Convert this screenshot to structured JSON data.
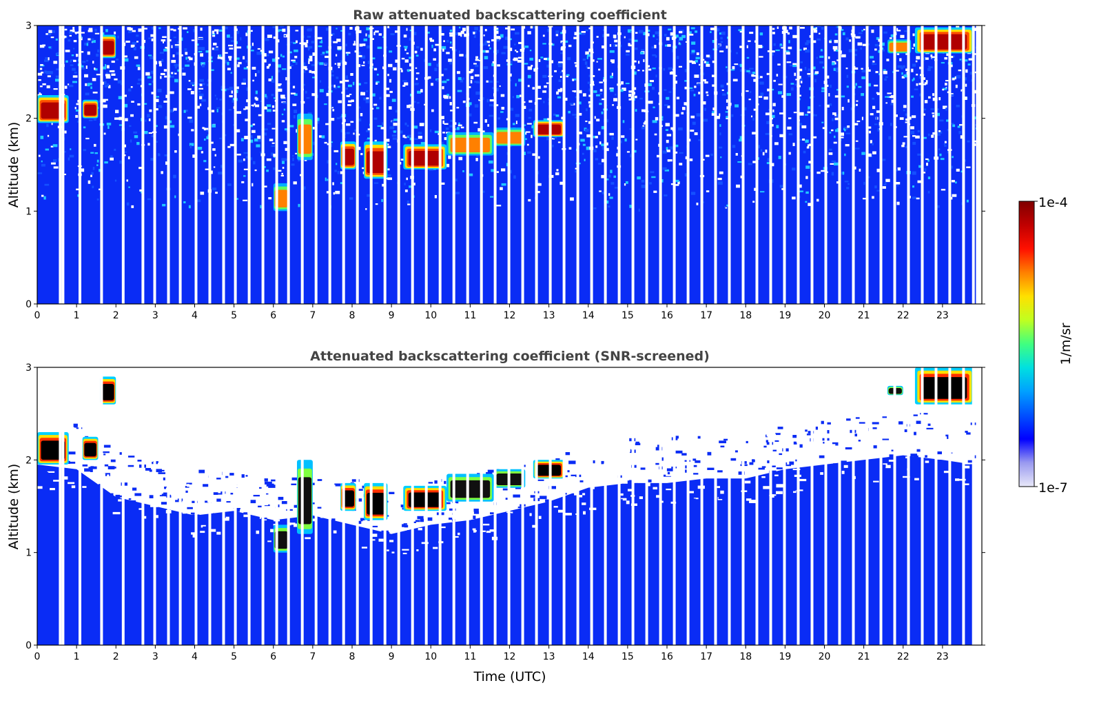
{
  "chart_data": [
    {
      "type": "heatmap",
      "title": "Raw attenuated backscattering coefficient",
      "xlabel": "",
      "ylabel": "Altitude (km)",
      "xlim": [
        0,
        24
      ],
      "ylim": [
        0,
        3
      ],
      "x_ticks": [
        "0",
        "1",
        "2",
        "3",
        "4",
        "5",
        "6",
        "7",
        "8",
        "9",
        "10",
        "11",
        "12",
        "13",
        "14",
        "15",
        "16",
        "17",
        "18",
        "19",
        "20",
        "21",
        "22",
        "23"
      ],
      "y_ticks": [
        "0",
        "1",
        "2",
        "3"
      ],
      "colormap": "jet",
      "color_scale": "log",
      "clim": [
        "1e-7",
        "1e-4"
      ],
      "background_color": "#0a2cf5",
      "noise_fraction_above_1km": 0.55,
      "cloud_layers": [
        {
          "t_start": 0.0,
          "t_end": 0.8,
          "alt_bottom": 1.95,
          "alt_top": 2.25,
          "intensity": "high"
        },
        {
          "t_start": 1.15,
          "t_end": 1.55,
          "alt_bottom": 2.0,
          "alt_top": 2.2,
          "intensity": "high"
        },
        {
          "t_start": 1.6,
          "t_end": 2.0,
          "alt_bottom": 2.65,
          "alt_top": 2.9,
          "intensity": "high"
        },
        {
          "t_start": 6.0,
          "t_end": 6.4,
          "alt_bottom": 1.0,
          "alt_top": 1.3,
          "intensity": "medium"
        },
        {
          "t_start": 6.6,
          "t_end": 7.0,
          "alt_bottom": 1.55,
          "alt_top": 2.05,
          "intensity": "medium"
        },
        {
          "t_start": 7.7,
          "t_end": 8.1,
          "alt_bottom": 1.45,
          "alt_top": 1.75,
          "intensity": "high"
        },
        {
          "t_start": 8.3,
          "t_end": 8.9,
          "alt_bottom": 1.35,
          "alt_top": 1.75,
          "intensity": "high"
        },
        {
          "t_start": 9.3,
          "t_end": 10.4,
          "alt_bottom": 1.45,
          "alt_top": 1.72,
          "intensity": "high"
        },
        {
          "t_start": 10.4,
          "t_end": 11.6,
          "alt_bottom": 1.6,
          "alt_top": 1.85,
          "intensity": "medium"
        },
        {
          "t_start": 11.6,
          "t_end": 12.4,
          "alt_bottom": 1.7,
          "alt_top": 1.9,
          "intensity": "medium"
        },
        {
          "t_start": 12.6,
          "t_end": 13.4,
          "alt_bottom": 1.8,
          "alt_top": 1.98,
          "intensity": "high"
        },
        {
          "t_start": 21.6,
          "t_end": 22.2,
          "alt_bottom": 2.7,
          "alt_top": 2.85,
          "intensity": "medium"
        },
        {
          "t_start": 22.3,
          "t_end": 23.8,
          "alt_bottom": 2.7,
          "alt_top": 2.98,
          "intensity": "high"
        }
      ],
      "gap_times": [
        0.55,
        0.62,
        1.05,
        1.6,
        2.15,
        2.65,
        2.95,
        3.3,
        3.6,
        4.0,
        4.35,
        4.7,
        5.0,
        5.35,
        5.7,
        6.05,
        6.35,
        6.7,
        7.05,
        7.4,
        7.75,
        8.1,
        8.45,
        8.8,
        9.15,
        9.5,
        9.85,
        10.2,
        10.55,
        10.9,
        11.25,
        11.6,
        11.95,
        12.3,
        12.65,
        13.0,
        13.35,
        13.7,
        14.05,
        14.4,
        14.75,
        15.1,
        15.45,
        15.8,
        16.15,
        16.5,
        16.85,
        17.2,
        17.55,
        17.9,
        18.25,
        18.6,
        18.95,
        19.3,
        19.65,
        20.0,
        20.35,
        20.7,
        21.05,
        21.4,
        21.75,
        22.1,
        22.45,
        22.8,
        23.15,
        23.5,
        23.75
      ]
    },
    {
      "type": "heatmap",
      "title": "Attenuated backscattering coefficient (SNR-screened)",
      "xlabel": "Time (UTC)",
      "ylabel": "Altitude (km)",
      "xlim": [
        0,
        24
      ],
      "ylim": [
        0,
        3
      ],
      "x_ticks": [
        "0",
        "1",
        "2",
        "3",
        "4",
        "5",
        "6",
        "7",
        "8",
        "9",
        "10",
        "11",
        "12",
        "13",
        "14",
        "15",
        "16",
        "17",
        "18",
        "19",
        "20",
        "21",
        "22",
        "23"
      ],
      "y_ticks": [
        "0",
        "1",
        "2",
        "3"
      ],
      "colormap": "jet",
      "color_scale": "log",
      "clim": [
        "1e-7",
        "1e-4"
      ],
      "background_color": "#0a2cf5",
      "signal_top_km": [
        [
          0,
          1.95
        ],
        [
          1,
          1.9
        ],
        [
          2,
          1.6
        ],
        [
          3,
          1.5
        ],
        [
          4,
          1.4
        ],
        [
          5,
          1.45
        ],
        [
          6,
          1.35
        ],
        [
          7,
          1.4
        ],
        [
          8,
          1.3
        ],
        [
          9,
          1.2
        ],
        [
          10,
          1.3
        ],
        [
          11,
          1.35
        ],
        [
          12,
          1.45
        ],
        [
          13,
          1.55
        ],
        [
          14,
          1.7
        ],
        [
          15,
          1.75
        ],
        [
          16,
          1.75
        ],
        [
          17,
          1.8
        ],
        [
          18,
          1.8
        ],
        [
          19,
          1.9
        ],
        [
          20,
          1.95
        ],
        [
          21,
          2.0
        ],
        [
          22,
          2.05
        ],
        [
          23,
          2.0
        ],
        [
          23.8,
          1.95
        ]
      ],
      "cloud_layers": [
        {
          "t_start": 0.0,
          "t_end": 0.8,
          "alt_bottom": 1.95,
          "alt_top": 2.3,
          "intensity": "high"
        },
        {
          "t_start": 1.15,
          "t_end": 1.55,
          "alt_bottom": 2.0,
          "alt_top": 2.25,
          "intensity": "high"
        },
        {
          "t_start": 1.6,
          "t_end": 2.0,
          "alt_bottom": 2.6,
          "alt_top": 2.9,
          "intensity": "high"
        },
        {
          "t_start": 6.0,
          "t_end": 6.4,
          "alt_bottom": 1.0,
          "alt_top": 1.3,
          "intensity": "medium"
        },
        {
          "t_start": 6.6,
          "t_end": 7.0,
          "alt_bottom": 1.2,
          "alt_top": 2.0,
          "intensity": "medium"
        },
        {
          "t_start": 7.7,
          "t_end": 8.1,
          "alt_bottom": 1.45,
          "alt_top": 1.75,
          "intensity": "high"
        },
        {
          "t_start": 8.3,
          "t_end": 8.9,
          "alt_bottom": 1.35,
          "alt_top": 1.75,
          "intensity": "high"
        },
        {
          "t_start": 9.3,
          "t_end": 10.4,
          "alt_bottom": 1.45,
          "alt_top": 1.72,
          "intensity": "high"
        },
        {
          "t_start": 10.4,
          "t_end": 11.6,
          "alt_bottom": 1.55,
          "alt_top": 1.85,
          "intensity": "medium"
        },
        {
          "t_start": 11.6,
          "t_end": 12.4,
          "alt_bottom": 1.7,
          "alt_top": 1.9,
          "intensity": "medium"
        },
        {
          "t_start": 12.6,
          "t_end": 13.4,
          "alt_bottom": 1.8,
          "alt_top": 2.0,
          "intensity": "high"
        },
        {
          "t_start": 21.6,
          "t_end": 22.0,
          "alt_bottom": 2.7,
          "alt_top": 2.8,
          "intensity": "medium"
        },
        {
          "t_start": 22.3,
          "t_end": 23.8,
          "alt_bottom": 2.6,
          "alt_top": 3.0,
          "intensity": "high"
        }
      ],
      "gap_times": [
        0.55,
        0.62,
        1.05,
        1.6,
        2.15,
        2.65,
        2.95,
        3.3,
        3.6,
        4.0,
        4.35,
        4.7,
        5.0,
        5.35,
        5.7,
        6.05,
        6.35,
        6.7,
        7.05,
        7.4,
        7.75,
        8.1,
        8.45,
        8.8,
        9.15,
        9.5,
        9.85,
        10.2,
        10.55,
        10.9,
        11.25,
        11.6,
        11.95,
        12.3,
        12.65,
        13.0,
        13.35,
        13.7,
        14.05,
        14.4,
        14.75,
        15.1,
        15.45,
        15.8,
        16.15,
        16.5,
        16.85,
        17.2,
        17.55,
        17.9,
        18.25,
        18.6,
        18.95,
        19.3,
        19.65,
        20.0,
        20.35,
        20.7,
        21.05,
        21.4,
        21.75,
        22.1,
        22.45,
        22.8,
        23.15,
        23.5,
        23.75
      ]
    }
  ],
  "colorbar": {
    "label": "1/m/sr",
    "max_label": "1e-4",
    "min_label": "1e-7",
    "colors": [
      "#e8e8f8",
      "#9a9af0",
      "#0000ff",
      "#0050ff",
      "#00a0ff",
      "#00e0e0",
      "#40ff80",
      "#c0ff20",
      "#ffe000",
      "#ff8000",
      "#ff1000",
      "#c00000",
      "#800000"
    ]
  }
}
